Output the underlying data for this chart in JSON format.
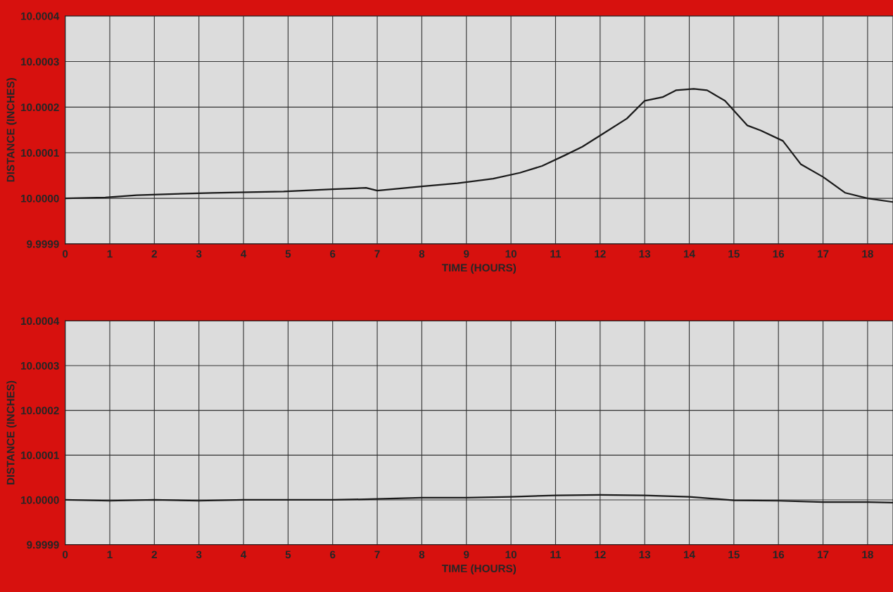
{
  "chart_data": [
    {
      "type": "line",
      "xlabel": "TIME (HOURS)",
      "ylabel": "DISTANCE (INCHES)",
      "xlim": [
        0,
        18.57
      ],
      "xticks": [
        0,
        1,
        2,
        3,
        4,
        5,
        6,
        7,
        8,
        9,
        10,
        11,
        12,
        13,
        14,
        15,
        16,
        17,
        18
      ],
      "ylim": [
        9.9999,
        10.0004
      ],
      "yticks": [
        {
          "value": 9.9999,
          "label": "9.9999"
        },
        {
          "value": 10.0,
          "label": "10.0000"
        },
        {
          "value": 10.0001,
          "label": "10.0001"
        },
        {
          "value": 10.0002,
          "label": "10.0002"
        },
        {
          "value": 10.0003,
          "label": "10.0003"
        },
        {
          "value": 10.0004,
          "label": "10.0004"
        }
      ],
      "grid": true,
      "series": [
        {
          "color": "#1a1a1a",
          "x": [
            0,
            0.9,
            1.6,
            3.3,
            4.9,
            6.0,
            6.75,
            7.0,
            8.0,
            8.8,
            9.6,
            10.2,
            10.7,
            11.2,
            11.6,
            12.1,
            12.6,
            13.0,
            13.4,
            13.7,
            14.1,
            14.4,
            14.8,
            15.3,
            15.6,
            16.1,
            16.5,
            17.0,
            17.5,
            18.0,
            18.56
          ],
          "values": [
            10.0,
            10.000002,
            10.000007,
            10.000012,
            10.000015,
            10.00002,
            10.000023,
            10.000017,
            10.000026,
            10.000033,
            10.000043,
            10.000056,
            10.000071,
            10.000094,
            10.000113,
            10.000144,
            10.000175,
            10.000214,
            10.000222,
            10.000237,
            10.00024,
            10.000237,
            10.000214,
            10.00016,
            10.000149,
            10.000126,
            10.000075,
            10.000047,
            10.000012,
            10.0,
            9.999992
          ]
        }
      ]
    },
    {
      "type": "line",
      "xlabel": "TIME (HOURS)",
      "ylabel": "DISTANCE (INCHES)",
      "xlim": [
        0,
        18.57
      ],
      "xticks": [
        0,
        1,
        2,
        3,
        4,
        5,
        6,
        7,
        8,
        9,
        10,
        11,
        12,
        13,
        14,
        15,
        16,
        17,
        18
      ],
      "ylim": [
        9.9999,
        10.0004
      ],
      "yticks": [
        {
          "value": 9.9999,
          "label": "9.9999"
        },
        {
          "value": 10.0,
          "label": "10.0000"
        },
        {
          "value": 10.0001,
          "label": "10.0001"
        },
        {
          "value": 10.0002,
          "label": "10.0002"
        },
        {
          "value": 10.0003,
          "label": "10.0003"
        },
        {
          "value": 10.0004,
          "label": "10.0004"
        }
      ],
      "grid": true,
      "series": [
        {
          "color": "#1a1a1a",
          "x": [
            0,
            1,
            2,
            3,
            4,
            5,
            6,
            7,
            8,
            9,
            10,
            11,
            12,
            13,
            14,
            15,
            16,
            17,
            18,
            18.56
          ],
          "values": [
            10.0,
            9.999998,
            10.0,
            9.999998,
            10.0,
            10.0,
            10.0,
            10.000002,
            10.000005,
            10.000005,
            10.000007,
            10.00001,
            10.000011,
            10.00001,
            10.000007,
            9.999999,
            9.999998,
            9.999995,
            9.999995,
            9.999994
          ]
        }
      ]
    }
  ]
}
